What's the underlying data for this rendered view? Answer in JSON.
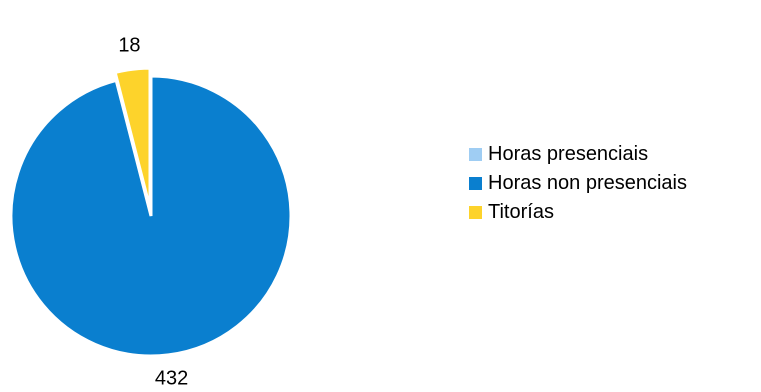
{
  "chart_data": {
    "type": "pie",
    "labels": [
      "Horas presenciais",
      "Horas non presenciais",
      "Titorías"
    ],
    "values": [
      0,
      432,
      18
    ],
    "data_labels": [
      "",
      "432",
      "18"
    ],
    "colors": [
      "#9fcdf3",
      "#0a7fcf",
      "#fdd32b"
    ],
    "exploded": [
      false,
      false,
      true
    ],
    "legend_position": "right",
    "title": ""
  },
  "legend": {
    "items": [
      {
        "label": "Horas presenciais",
        "color": "#9fcdf3"
      },
      {
        "label": "Horas non presenciais",
        "color": "#0a7fcf"
      },
      {
        "label": "Titorías",
        "color": "#fdd32b"
      }
    ]
  }
}
